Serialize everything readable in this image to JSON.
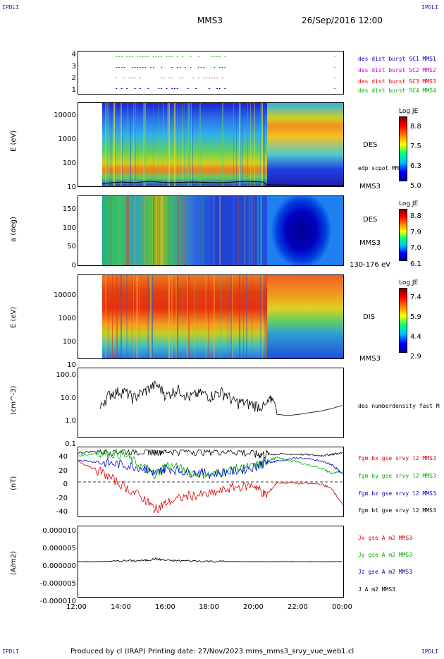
{
  "corners": {
    "tl": "IPDLI",
    "tr": "IPDLI",
    "bl": "IPDLI",
    "br": "IPDLI"
  },
  "header": {
    "spacecraft": "MMS3",
    "date": "26/Sep/2016 12:00"
  },
  "footer": "Produced by cl (IRAP)   Printing date: 27/Nov/2023   mms_mms3_srvy_vue_web1.cl",
  "time_axis": {
    "ticks": [
      "12:00",
      "14:00",
      "16:00",
      "18:00",
      "20:00",
      "22:00",
      "00:00"
    ]
  },
  "colors": {
    "red": "#e80000",
    "green": "#00c000",
    "blue": "#0000e0",
    "magenta": "#d000d0",
    "black": "#000000"
  },
  "panels": {
    "burst": {
      "ticks": [
        "4",
        "3",
        "2",
        "1"
      ],
      "legend": [
        {
          "text": "des dist burst SC1 MMS1",
          "color": "#0000c0"
        },
        {
          "text": "des dist burst SC2 MMS2",
          "color": "#d000d0"
        },
        {
          "text": "des dist burst SC3 MMS3",
          "color": "#e00000"
        },
        {
          "text": "des dist burst SC4 MMS4",
          "color": "#00b000"
        }
      ]
    },
    "des_energy": {
      "ylabel": "E (eV)",
      "ticks": [
        "10000",
        "1000",
        "100",
        "10"
      ],
      "right_labels": [
        "DES",
        "edp scpot MMS3",
        "MMS3"
      ],
      "colorbar": {
        "title": "Log JE",
        "ticks": [
          "8.8",
          "7.5",
          "6.3",
          "5.0"
        ]
      }
    },
    "des_pitch": {
      "ylabel": "a (deg)",
      "ticks": [
        "150",
        "100",
        "50",
        "0"
      ],
      "right_labels": [
        "DES",
        "MMS3",
        "130-176 eV"
      ],
      "colorbar": {
        "title": "Log JE",
        "ticks": [
          "8.8",
          "7.9",
          "7.0",
          "6.1"
        ]
      }
    },
    "dis_energy": {
      "ylabel": "E (eV)",
      "ticks": [
        "10000",
        "1000",
        "100",
        "10"
      ],
      "right_labels": [
        "DIS",
        "MMS3"
      ],
      "colorbar": {
        "title": "Log JE",
        "ticks": [
          "7.4",
          "5.9",
          "4.4",
          "2.9"
        ]
      }
    },
    "density": {
      "ylabel": "(cm^-3)",
      "ticks": [
        "100.0",
        "10.0",
        "1.0",
        "0.1"
      ],
      "legend": "des numberdensity fast M"
    },
    "bfield": {
      "ylabel": "(nT)",
      "ticks": [
        "40",
        "20",
        "0",
        "-20",
        "-40"
      ],
      "legend": [
        {
          "text": "fgm bx gse srvy l2 MMS3",
          "color": "#e00000"
        },
        {
          "text": "fgm by gse srvy l2 MMS3",
          "color": "#00b000"
        },
        {
          "text": "fgm bz gse srvy l2 MMS3",
          "color": "#0000c0"
        },
        {
          "text": "fgm bt gse srvy l2 MMS3",
          "color": "#000000"
        }
      ]
    },
    "current": {
      "ylabel": "(A/m2)",
      "ticks": [
        "0.000010",
        "0.000005",
        "0.000000",
        "-0.000005",
        "-0.000010"
      ],
      "legend": [
        {
          "text": "Jx gse A m2 MMS3",
          "color": "#e00000"
        },
        {
          "text": "Jy gse A m2 MMS3",
          "color": "#00b000"
        },
        {
          "text": "Jz gse A m2 MMS3",
          "color": "#0000c0"
        },
        {
          "text": "J A m2 MMS3",
          "color": "#000000"
        }
      ]
    }
  },
  "chart_data": [
    {
      "type": "scatter",
      "title": "burst intervals",
      "ylim": [
        0.5,
        4.5
      ]
    },
    {
      "type": "heatmap",
      "ylabel": "E (eV)",
      "ylim": [
        10,
        30000
      ],
      "log_y": true,
      "colorbar_range": [
        5.0,
        8.8
      ]
    },
    {
      "type": "heatmap",
      "ylabel": "a (deg)",
      "ylim": [
        0,
        180
      ],
      "colorbar_range": [
        6.1,
        8.8
      ]
    },
    {
      "type": "heatmap",
      "ylabel": "E (eV)",
      "ylim": [
        10,
        30000
      ],
      "log_y": true,
      "colorbar_range": [
        2.9,
        7.4
      ]
    },
    {
      "type": "line",
      "ylabel": "(cm^-3)",
      "log_y": true,
      "ylim": [
        0.1,
        100
      ],
      "x": [
        13.0,
        13.5,
        14.0,
        14.5,
        15.0,
        15.5,
        16.0,
        16.5,
        17.0,
        17.5,
        18.0,
        18.5,
        19.0,
        19.5,
        20.0,
        20.5,
        20.8,
        21.0,
        21.5,
        22.0,
        22.5,
        23.0,
        23.5,
        24.0
      ],
      "series": [
        {
          "name": "des numberdensity fast M",
          "values": [
            1.5,
            8.0,
            10.0,
            5.0,
            9.0,
            18.0,
            6.0,
            12.0,
            5.0,
            8.0,
            6.0,
            9.0,
            3.5,
            3.0,
            2.5,
            2.0,
            5.0,
            1.0,
            0.9,
            1.0,
            1.2,
            1.4,
            1.8,
            2.5
          ]
        }
      ]
    },
    {
      "type": "line",
      "ylabel": "(nT)",
      "ylim": [
        -50,
        50
      ],
      "x": [
        12.0,
        13.0,
        14.0,
        15.0,
        15.5,
        16.0,
        17.0,
        18.0,
        19.0,
        20.0,
        20.5,
        21.0,
        22.0,
        23.0,
        23.5,
        24.0
      ],
      "series": [
        {
          "name": "fgm bx gse srvy l2 MMS3",
          "values": [
            30,
            15,
            -5,
            -25,
            -40,
            -30,
            -20,
            -18,
            -8,
            -5,
            -20,
            -1,
            -2,
            -3,
            -10,
            -35
          ]
        },
        {
          "name": "fgm by gse srvy l2 MMS3",
          "values": [
            38,
            42,
            40,
            20,
            10,
            25,
            15,
            10,
            18,
            22,
            30,
            35,
            28,
            20,
            12,
            15
          ]
        },
        {
          "name": "fgm bz gse srvy l2 MMS3",
          "values": [
            32,
            28,
            25,
            20,
            12,
            20,
            14,
            12,
            15,
            22,
            28,
            30,
            35,
            30,
            25,
            10
          ]
        },
        {
          "name": "fgm bt gse srvy l2 MMS3",
          "values": [
            42,
            45,
            45,
            45,
            45,
            45,
            45,
            45,
            45,
            40,
            40,
            40,
            40,
            38,
            40,
            42
          ]
        }
      ]
    },
    {
      "type": "line",
      "ylabel": "(A/m2)",
      "ylim": [
        -1e-05,
        1e-05
      ],
      "x": [
        12.0,
        13.0,
        14.0,
        15.0,
        15.5,
        16.0,
        17.0,
        18.0,
        19.0,
        20.0,
        21.0,
        22.0,
        23.0,
        24.0
      ],
      "series": [
        {
          "name": "J A m2 MMS3",
          "values": [
            0,
            0,
            2e-07,
            3e-07,
            8e-07,
            3e-07,
            2e-07,
            1e-07,
            0,
            0,
            0,
            0,
            0,
            0
          ]
        }
      ]
    }
  ]
}
